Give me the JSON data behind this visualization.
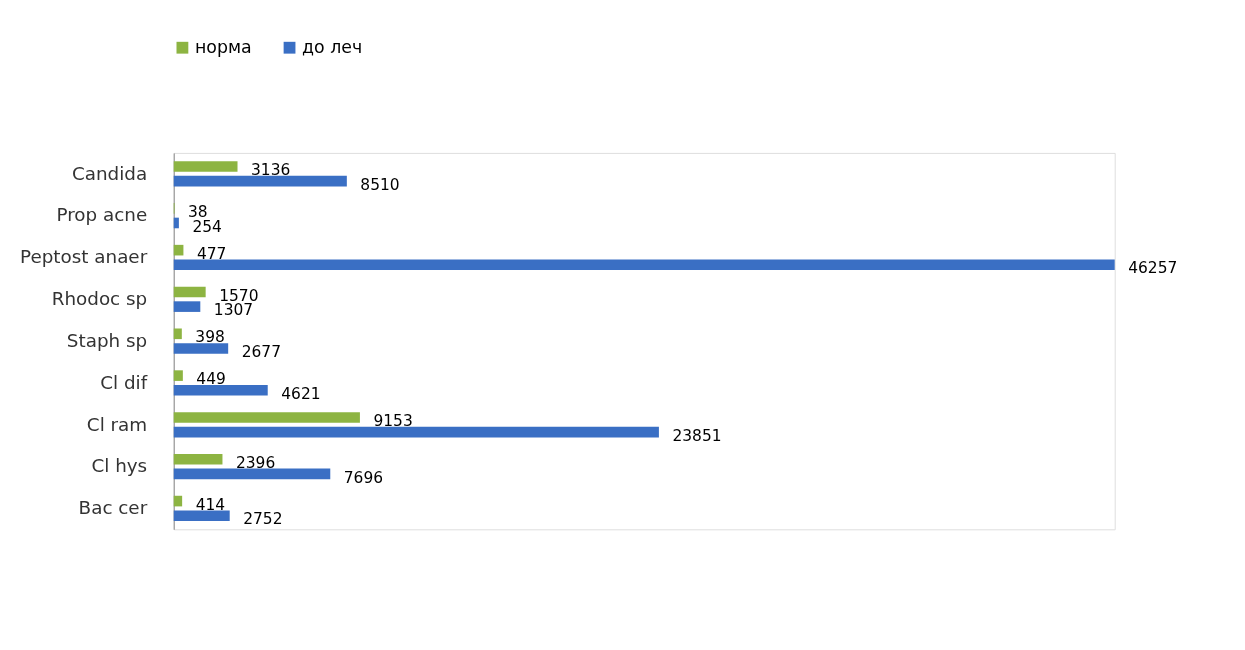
{
  "chart_data": {
    "type": "bar",
    "orientation": "horizontal",
    "legend": "top",
    "data_labels": true,
    "grid": false,
    "tick_labels": "y",
    "categories": [
      "Candida",
      "Prop acne",
      "Peptost anaer",
      "Rhodoc sp",
      "Staph sp",
      "Cl dif",
      "Cl ram",
      "Cl hys",
      "Bac cer"
    ],
    "series": [
      {
        "name": "норма",
        "color": "#8db442",
        "values": [
          3136,
          38,
          477,
          1570,
          398,
          449,
          9153,
          2396,
          414
        ]
      },
      {
        "name": "до леч",
        "color": "#3a6fc4",
        "values": [
          8510,
          254,
          46257,
          1307,
          2677,
          4621,
          23851,
          7696,
          2752
        ]
      }
    ]
  }
}
